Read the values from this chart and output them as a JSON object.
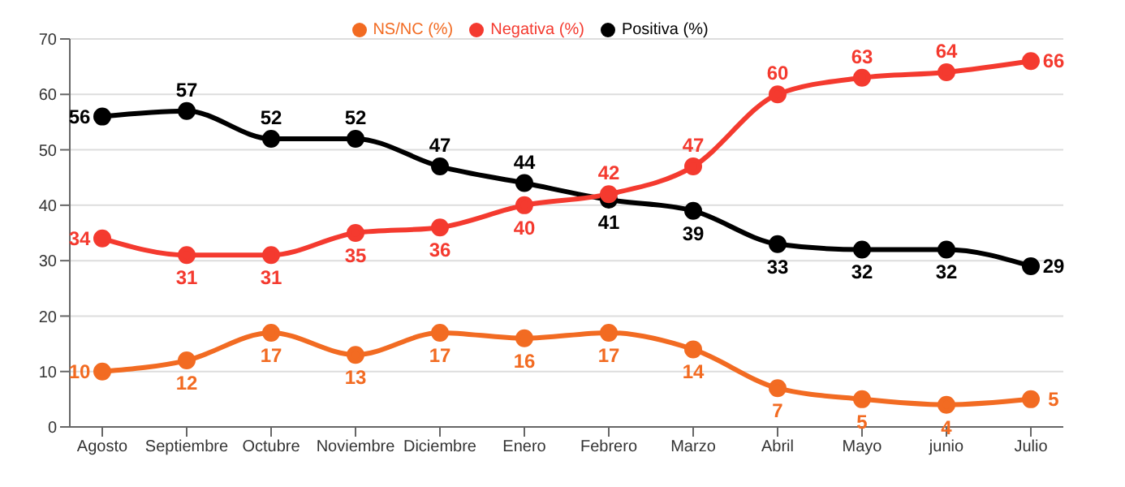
{
  "chart_data": {
    "type": "line",
    "categories": [
      "Agosto",
      "Septiembre",
      "Octubre",
      "Noviembre",
      "Diciembre",
      "Enero",
      "Febrero",
      "Marzo",
      "Abril",
      "Mayo",
      "junio",
      "Julio"
    ],
    "series": [
      {
        "name": "Positiva (%)",
        "color": "#000000",
        "values": [
          56,
          57,
          52,
          52,
          47,
          44,
          41,
          39,
          33,
          32,
          32,
          29
        ]
      },
      {
        "name": "Negativa (%)",
        "color": "#f43a2f",
        "values": [
          34,
          31,
          31,
          35,
          36,
          40,
          42,
          47,
          60,
          63,
          64,
          66
        ]
      },
      {
        "name": "NS/NC (%)",
        "color": "#f26b22",
        "values": [
          10,
          12,
          17,
          13,
          17,
          16,
          17,
          14,
          7,
          5,
          4,
          5
        ]
      }
    ],
    "ylim": [
      0,
      70
    ],
    "yticks": [
      0,
      10,
      20,
      30,
      40,
      50,
      60,
      70
    ],
    "grid": "y",
    "legend": "top",
    "marker": "circle",
    "line_style": "solid",
    "data_labels": true
  }
}
